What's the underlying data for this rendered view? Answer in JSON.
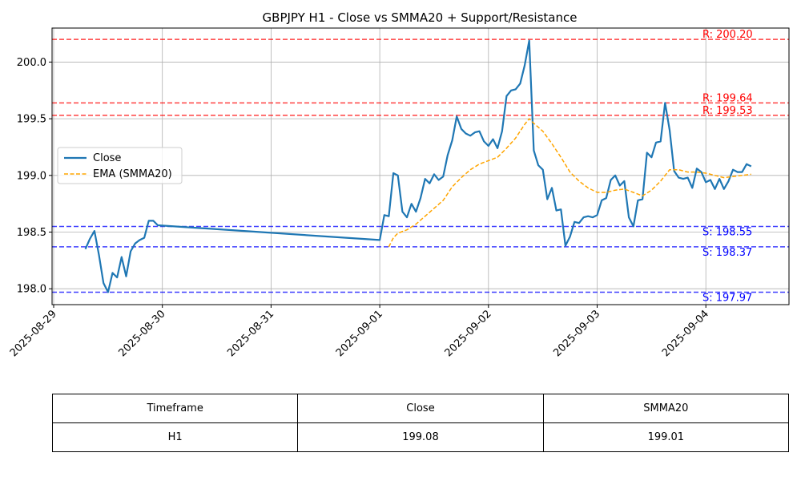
{
  "chart_data": {
    "type": "line",
    "title": "GBPJPY H1 - Close vs SMMA20 + Support/Resistance",
    "xlabel": "",
    "ylabel": "",
    "x_range": [
      "2025-08-29T00:00",
      "2025-09-04T18:00"
    ],
    "ylim": [
      197.86,
      200.3
    ],
    "yticks": [
      198.0,
      198.5,
      199.0,
      199.5,
      200.0
    ],
    "ytick_labels": [
      "198.0",
      "198.5",
      "199.0",
      "199.5",
      "200.0"
    ],
    "xticks": [
      "2025-08-29",
      "2025-08-30",
      "2025-08-31",
      "2025-09-01",
      "2025-09-02",
      "2025-09-03",
      "2025-09-04"
    ],
    "grid": true,
    "legend_position": "center-left",
    "series": [
      {
        "name": "Close",
        "color": "#1f77b4",
        "style": "solid",
        "points": [
          [
            "2025-08-29T07:00",
            198.35
          ],
          [
            "2025-08-29T08:00",
            198.44
          ],
          [
            "2025-08-29T09:00",
            198.51
          ],
          [
            "2025-08-29T10:00",
            198.3
          ],
          [
            "2025-08-29T11:00",
            198.05
          ],
          [
            "2025-08-29T12:00",
            197.97
          ],
          [
            "2025-08-29T13:00",
            198.14
          ],
          [
            "2025-08-29T14:00",
            198.1
          ],
          [
            "2025-08-29T15:00",
            198.28
          ],
          [
            "2025-08-29T16:00",
            198.11
          ],
          [
            "2025-08-29T17:00",
            198.33
          ],
          [
            "2025-08-29T18:00",
            198.4
          ],
          [
            "2025-08-29T19:00",
            198.43
          ],
          [
            "2025-08-29T20:00",
            198.45
          ],
          [
            "2025-08-29T21:00",
            198.6
          ],
          [
            "2025-08-29T22:00",
            198.6
          ],
          [
            "2025-08-29T23:00",
            198.56
          ],
          [
            "2025-09-01T00:00",
            198.43
          ],
          [
            "2025-09-01T01:00",
            198.65
          ],
          [
            "2025-09-01T02:00",
            198.64
          ],
          [
            "2025-09-01T03:00",
            199.02
          ],
          [
            "2025-09-01T04:00",
            199.0
          ],
          [
            "2025-09-01T05:00",
            198.68
          ],
          [
            "2025-09-01T06:00",
            198.63
          ],
          [
            "2025-09-01T07:00",
            198.75
          ],
          [
            "2025-09-01T08:00",
            198.68
          ],
          [
            "2025-09-01T09:00",
            198.8
          ],
          [
            "2025-09-01T10:00",
            198.97
          ],
          [
            "2025-09-01T11:00",
            198.93
          ],
          [
            "2025-09-01T12:00",
            199.01
          ],
          [
            "2025-09-01T13:00",
            198.96
          ],
          [
            "2025-09-01T14:00",
            198.99
          ],
          [
            "2025-09-01T15:00",
            199.18
          ],
          [
            "2025-09-01T16:00",
            199.31
          ],
          [
            "2025-09-01T17:00",
            199.52
          ],
          [
            "2025-09-01T18:00",
            199.41
          ],
          [
            "2025-09-01T19:00",
            199.37
          ],
          [
            "2025-09-01T20:00",
            199.35
          ],
          [
            "2025-09-01T21:00",
            199.38
          ],
          [
            "2025-09-01T22:00",
            199.39
          ],
          [
            "2025-09-01T23:00",
            199.3
          ],
          [
            "2025-09-02T00:00",
            199.26
          ],
          [
            "2025-09-02T01:00",
            199.32
          ],
          [
            "2025-09-02T02:00",
            199.24
          ],
          [
            "2025-09-02T03:00",
            199.39
          ],
          [
            "2025-09-02T04:00",
            199.7
          ],
          [
            "2025-09-02T05:00",
            199.75
          ],
          [
            "2025-09-02T06:00",
            199.76
          ],
          [
            "2025-09-02T07:00",
            199.81
          ],
          [
            "2025-09-02T08:00",
            199.97
          ],
          [
            "2025-09-02T09:00",
            200.19
          ],
          [
            "2025-09-02T10:00",
            199.22
          ],
          [
            "2025-09-02T11:00",
            199.09
          ],
          [
            "2025-09-02T12:00",
            199.05
          ],
          [
            "2025-09-02T13:00",
            198.79
          ],
          [
            "2025-09-02T14:00",
            198.89
          ],
          [
            "2025-09-02T15:00",
            198.69
          ],
          [
            "2025-09-02T16:00",
            198.7
          ],
          [
            "2025-09-02T17:00",
            198.38
          ],
          [
            "2025-09-02T18:00",
            198.46
          ],
          [
            "2025-09-02T19:00",
            198.59
          ],
          [
            "2025-09-02T20:00",
            198.58
          ],
          [
            "2025-09-02T21:00",
            198.63
          ],
          [
            "2025-09-02T22:00",
            198.64
          ],
          [
            "2025-09-02T23:00",
            198.63
          ],
          [
            "2025-09-03T00:00",
            198.65
          ],
          [
            "2025-09-03T01:00",
            198.78
          ],
          [
            "2025-09-03T02:00",
            198.8
          ],
          [
            "2025-09-03T03:00",
            198.96
          ],
          [
            "2025-09-03T04:00",
            199.0
          ],
          [
            "2025-09-03T05:00",
            198.91
          ],
          [
            "2025-09-03T06:00",
            198.95
          ],
          [
            "2025-09-03T07:00",
            198.63
          ],
          [
            "2025-09-03T08:00",
            198.55
          ],
          [
            "2025-09-03T09:00",
            198.78
          ],
          [
            "2025-09-03T10:00",
            198.79
          ],
          [
            "2025-09-03T11:00",
            199.2
          ],
          [
            "2025-09-03T12:00",
            199.16
          ],
          [
            "2025-09-03T13:00",
            199.29
          ],
          [
            "2025-09-03T14:00",
            199.3
          ],
          [
            "2025-09-03T15:00",
            199.64
          ],
          [
            "2025-09-03T16:00",
            199.4
          ],
          [
            "2025-09-03T17:00",
            199.04
          ],
          [
            "2025-09-03T18:00",
            198.98
          ],
          [
            "2025-09-03T19:00",
            198.97
          ],
          [
            "2025-09-03T20:00",
            198.98
          ],
          [
            "2025-09-03T21:00",
            198.89
          ],
          [
            "2025-09-03T22:00",
            199.06
          ],
          [
            "2025-09-03T23:00",
            199.03
          ],
          [
            "2025-09-04T00:00",
            198.94
          ],
          [
            "2025-09-04T01:00",
            198.96
          ],
          [
            "2025-09-04T02:00",
            198.88
          ],
          [
            "2025-09-04T03:00",
            198.97
          ],
          [
            "2025-09-04T04:00",
            198.88
          ],
          [
            "2025-09-04T05:00",
            198.95
          ],
          [
            "2025-09-04T06:00",
            199.05
          ],
          [
            "2025-09-04T07:00",
            199.03
          ],
          [
            "2025-09-04T08:00",
            199.03
          ],
          [
            "2025-09-04T09:00",
            199.1
          ],
          [
            "2025-09-04T10:00",
            199.08
          ]
        ]
      },
      {
        "name": "EMA (SMMA20)",
        "color": "#ffa500",
        "style": "dashed",
        "points": [
          [
            "2025-09-01T02:00",
            198.37
          ],
          [
            "2025-09-01T03:00",
            198.45
          ],
          [
            "2025-09-01T04:00",
            198.49
          ],
          [
            "2025-09-01T06:00",
            198.52
          ],
          [
            "2025-09-01T08:00",
            198.57
          ],
          [
            "2025-09-01T10:00",
            198.64
          ],
          [
            "2025-09-01T12:00",
            198.71
          ],
          [
            "2025-09-01T14:00",
            198.78
          ],
          [
            "2025-09-01T16:00",
            198.9
          ],
          [
            "2025-09-01T18:00",
            198.98
          ],
          [
            "2025-09-01T20:00",
            199.05
          ],
          [
            "2025-09-01T22:00",
            199.1
          ],
          [
            "2025-09-02T00:00",
            199.13
          ],
          [
            "2025-09-02T02:00",
            199.16
          ],
          [
            "2025-09-02T04:00",
            199.24
          ],
          [
            "2025-09-02T06:00",
            199.33
          ],
          [
            "2025-09-02T08:00",
            199.45
          ],
          [
            "2025-09-02T09:00",
            199.5
          ],
          [
            "2025-09-02T10:00",
            199.46
          ],
          [
            "2025-09-02T12:00",
            199.39
          ],
          [
            "2025-09-02T14:00",
            199.28
          ],
          [
            "2025-09-02T16:00",
            199.16
          ],
          [
            "2025-09-02T18:00",
            199.03
          ],
          [
            "2025-09-02T20:00",
            198.95
          ],
          [
            "2025-09-02T22:00",
            198.89
          ],
          [
            "2025-09-03T00:00",
            198.85
          ],
          [
            "2025-09-03T02:00",
            198.85
          ],
          [
            "2025-09-03T04:00",
            198.87
          ],
          [
            "2025-09-03T06:00",
            198.88
          ],
          [
            "2025-09-03T08:00",
            198.85
          ],
          [
            "2025-09-03T10:00",
            198.82
          ],
          [
            "2025-09-03T12:00",
            198.87
          ],
          [
            "2025-09-03T14:00",
            198.95
          ],
          [
            "2025-09-03T16:00",
            199.05
          ],
          [
            "2025-09-03T18:00",
            199.05
          ],
          [
            "2025-09-03T20:00",
            199.03
          ],
          [
            "2025-09-03T22:00",
            199.03
          ],
          [
            "2025-09-04T00:00",
            199.02
          ],
          [
            "2025-09-04T02:00",
            199.0
          ],
          [
            "2025-09-04T04:00",
            198.98
          ],
          [
            "2025-09-04T06:00",
            198.99
          ],
          [
            "2025-09-04T08:00",
            199.0
          ],
          [
            "2025-09-04T10:00",
            199.01
          ]
        ]
      }
    ],
    "levels": [
      {
        "kind": "resistance",
        "value": 200.2,
        "label": "R: 200.20",
        "color": "#ff0000"
      },
      {
        "kind": "resistance",
        "value": 199.64,
        "label": "R: 199.64",
        "color": "#ff0000"
      },
      {
        "kind": "resistance",
        "value": 199.53,
        "label": "R: 199.53",
        "color": "#ff0000"
      },
      {
        "kind": "support",
        "value": 198.55,
        "label": "S: 198.55",
        "color": "#0000ff"
      },
      {
        "kind": "support",
        "value": 198.37,
        "label": "S: 198.37",
        "color": "#0000ff"
      },
      {
        "kind": "support",
        "value": 197.97,
        "label": "S: 197.97",
        "color": "#0000ff"
      }
    ]
  },
  "table": {
    "headers": [
      "Timeframe",
      "Close",
      "SMMA20"
    ],
    "row": [
      "H1",
      "199.08",
      "199.01"
    ]
  }
}
